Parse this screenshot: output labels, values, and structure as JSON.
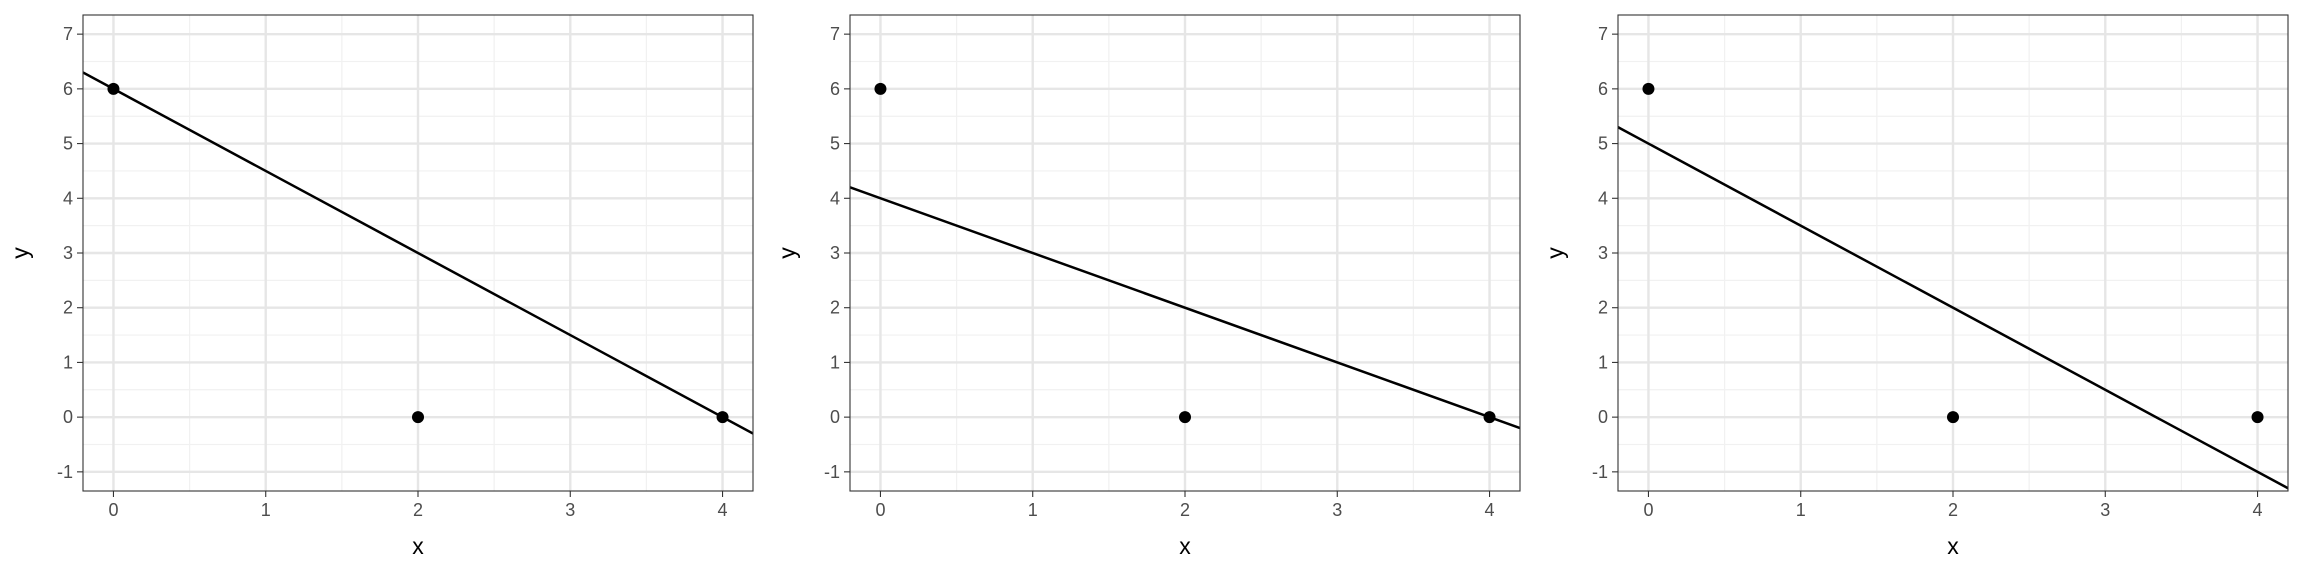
{
  "chart_data": [
    {
      "type": "scatter",
      "title": "",
      "xlabel": "x",
      "ylabel": "y",
      "xlim": [
        -0.2,
        4.2
      ],
      "ylim": [
        -1.35,
        7.35
      ],
      "xticks": [
        0,
        1,
        2,
        3,
        4
      ],
      "yticks": [
        -1,
        0,
        1,
        2,
        3,
        4,
        5,
        6,
        7
      ],
      "grid": true,
      "points": [
        {
          "x": 0,
          "y": 6
        },
        {
          "x": 2,
          "y": 0
        },
        {
          "x": 4,
          "y": 0
        }
      ],
      "line": {
        "intercept": 6,
        "slope": -1.5
      }
    },
    {
      "type": "scatter",
      "title": "",
      "xlabel": "x",
      "ylabel": "y",
      "xlim": [
        -0.2,
        4.2
      ],
      "ylim": [
        -1.35,
        7.35
      ],
      "xticks": [
        0,
        1,
        2,
        3,
        4
      ],
      "yticks": [
        -1,
        0,
        1,
        2,
        3,
        4,
        5,
        6,
        7
      ],
      "grid": true,
      "points": [
        {
          "x": 0,
          "y": 6
        },
        {
          "x": 2,
          "y": 0
        },
        {
          "x": 4,
          "y": 0
        }
      ],
      "line": {
        "intercept": 4,
        "slope": -1
      }
    },
    {
      "type": "scatter",
      "title": "",
      "xlabel": "x",
      "ylabel": "y",
      "xlim": [
        -0.2,
        4.2
      ],
      "ylim": [
        -1.35,
        7.35
      ],
      "xticks": [
        0,
        1,
        2,
        3,
        4
      ],
      "yticks": [
        -1,
        0,
        1,
        2,
        3,
        4,
        5,
        6,
        7
      ],
      "grid": true,
      "points": [
        {
          "x": 0,
          "y": 6
        },
        {
          "x": 2,
          "y": 0
        },
        {
          "x": 4,
          "y": 0
        }
      ],
      "line": {
        "intercept": 5,
        "slope": -1.5
      }
    }
  ]
}
